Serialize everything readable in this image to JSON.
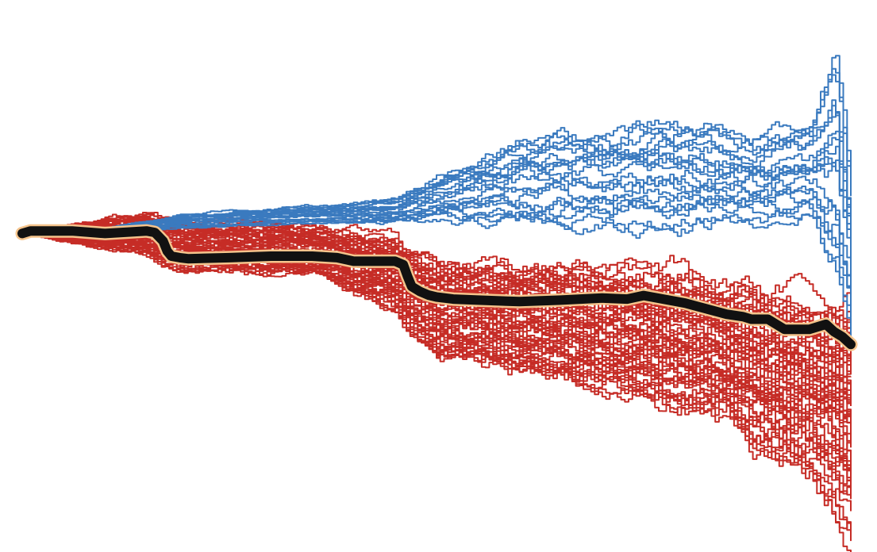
{
  "chart_data": {
    "type": "line",
    "title": "",
    "xlabel": "",
    "ylabel": "",
    "x_range": [
      0,
      100
    ],
    "ylim": [
      -60,
      40
    ],
    "grid": false,
    "legend": "none",
    "colors": {
      "gain_series": "#3a7abf",
      "loss_series": "#c62c26",
      "median": "#111111",
      "median_outline": "#f5c48c"
    },
    "series_groups": [
      {
        "group": "gain",
        "color_key": "gain_series",
        "count": 20,
        "breakpoints": [
          0,
          10,
          20,
          30,
          40,
          45,
          50,
          60,
          70,
          80,
          85,
          90,
          95,
          98,
          100
        ],
        "envelope_low": [
          0,
          0,
          1,
          2,
          2,
          2,
          2,
          2,
          2,
          2,
          2,
          2,
          2,
          -8,
          -20
        ],
        "envelope_high": [
          0,
          1,
          4,
          5,
          6,
          7,
          12,
          19,
          20,
          23,
          21,
          20,
          22,
          36,
          10
        ]
      },
      {
        "group": "loss",
        "color_key": "loss_series",
        "count": 60,
        "breakpoints": [
          0,
          10,
          15,
          17,
          20,
          25,
          30,
          35,
          40,
          45,
          46,
          50,
          55,
          60,
          70,
          75,
          80,
          85,
          88,
          90,
          95,
          100
        ],
        "envelope_high": [
          0,
          3,
          4,
          3,
          2,
          2,
          2,
          1,
          0,
          -1,
          -3,
          -6,
          -6,
          -7,
          -7,
          -8,
          -8,
          -11,
          -11,
          -12,
          -12,
          -14
        ],
        "envelope_low": [
          0,
          -3,
          -4,
          -6,
          -7,
          -7,
          -8,
          -8,
          -12,
          -15,
          -18,
          -24,
          -25,
          -27,
          -30,
          -31,
          -34,
          -35,
          -42,
          -44,
          -47,
          -58
        ]
      }
    ],
    "median_series": {
      "color_key": "median",
      "outline_key": "median_outline",
      "x": [
        0,
        1,
        3,
        6,
        10,
        15,
        16,
        17,
        17.5,
        18,
        19,
        20,
        25,
        30,
        35,
        38,
        40,
        45,
        46,
        46.5,
        47,
        48,
        49,
        50,
        52,
        55,
        60,
        65,
        70,
        73,
        75,
        80,
        85,
        87,
        88,
        89,
        90,
        92,
        95,
        97,
        98,
        99,
        100
      ],
      "y": [
        0,
        0.5,
        0.5,
        0.5,
        0,
        0.5,
        0.2,
        -1.5,
        -3.5,
        -4.5,
        -4.8,
        -5,
        -4.8,
        -4.5,
        -4.5,
        -4.8,
        -5.5,
        -5.5,
        -6.2,
        -8.5,
        -10.5,
        -11.5,
        -12.2,
        -12.6,
        -13,
        -13.2,
        -13.5,
        -13.2,
        -12.8,
        -13,
        -12.3,
        -13.8,
        -16,
        -16.5,
        -17,
        -17,
        -17,
        -19,
        -19,
        -18,
        -19.5,
        -20.5,
        -22
      ]
    }
  }
}
